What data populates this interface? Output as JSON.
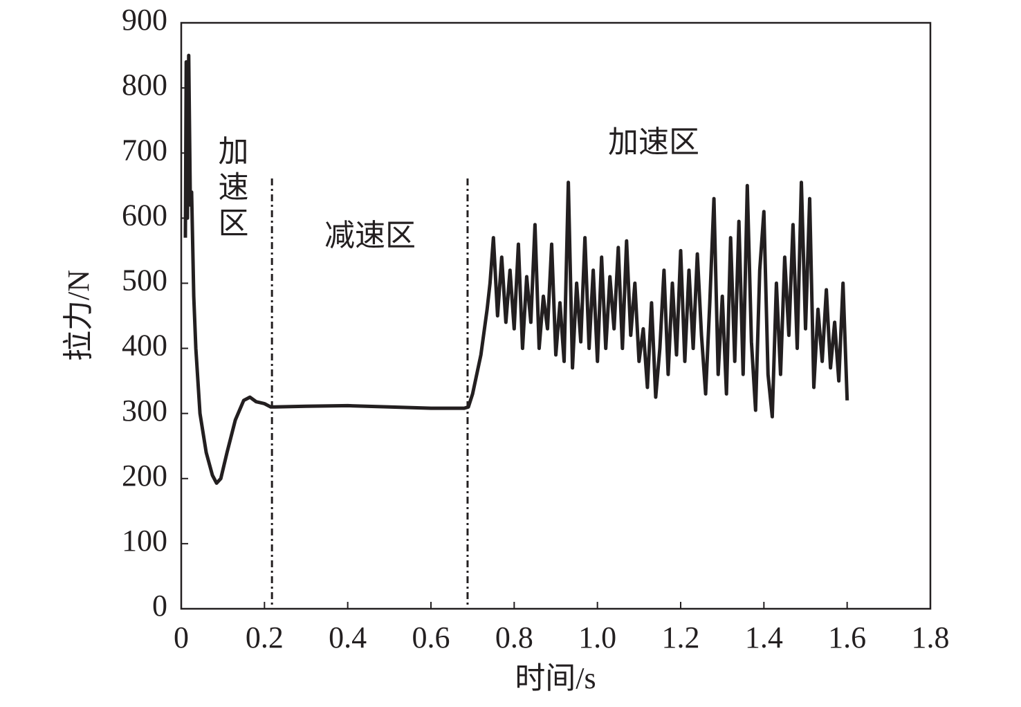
{
  "chart_data": {
    "type": "line",
    "xlabel": "时间/s",
    "ylabel": "拉力/N",
    "annotations": [
      "加速区",
      "减速区",
      "加速区"
    ],
    "vlines": [
      0.218,
      0.688
    ],
    "x": [
      0.01,
      0.012,
      0.015,
      0.018,
      0.022,
      0.025,
      0.03,
      0.035,
      0.045,
      0.06,
      0.075,
      0.085,
      0.095,
      0.11,
      0.13,
      0.15,
      0.165,
      0.18,
      0.2,
      0.215,
      0.225,
      0.3,
      0.4,
      0.5,
      0.6,
      0.68,
      0.69,
      0.7,
      0.72,
      0.735,
      0.742,
      0.75,
      0.76,
      0.77,
      0.78,
      0.79,
      0.8,
      0.81,
      0.82,
      0.83,
      0.84,
      0.85,
      0.86,
      0.87,
      0.88,
      0.89,
      0.9,
      0.91,
      0.92,
      0.93,
      0.94,
      0.95,
      0.96,
      0.97,
      0.98,
      0.99,
      1.0,
      1.01,
      1.02,
      1.03,
      1.04,
      1.05,
      1.06,
      1.07,
      1.08,
      1.09,
      1.1,
      1.11,
      1.12,
      1.13,
      1.14,
      1.15,
      1.16,
      1.17,
      1.18,
      1.19,
      1.2,
      1.21,
      1.22,
      1.23,
      1.24,
      1.25,
      1.26,
      1.27,
      1.28,
      1.29,
      1.3,
      1.31,
      1.32,
      1.33,
      1.34,
      1.35,
      1.36,
      1.37,
      1.38,
      1.39,
      1.4,
      1.41,
      1.42,
      1.43,
      1.44,
      1.45,
      1.46,
      1.47,
      1.48,
      1.49,
      1.5,
      1.51,
      1.52,
      1.53,
      1.54,
      1.55,
      1.56,
      1.57,
      1.58,
      1.59,
      1.6
    ],
    "series": [
      {
        "name": "拉力",
        "color": "#231f20",
        "values": [
          570,
          840,
          600,
          850,
          620,
          640,
          480,
          400,
          300,
          240,
          205,
          193,
          200,
          240,
          290,
          320,
          325,
          318,
          315,
          310,
          310,
          311,
          312,
          310,
          308,
          308,
          310,
          330,
          390,
          460,
          500,
          570,
          450,
          540,
          440,
          520,
          430,
          560,
          400,
          510,
          440,
          590,
          400,
          480,
          430,
          560,
          390,
          470,
          380,
          655,
          370,
          500,
          410,
          570,
          400,
          520,
          380,
          540,
          400,
          510,
          430,
          555,
          400,
          565,
          420,
          500,
          380,
          430,
          340,
          470,
          325,
          400,
          520,
          360,
          500,
          390,
          550,
          380,
          520,
          400,
          545,
          420,
          330,
          470,
          630,
          360,
          480,
          330,
          570,
          380,
          595,
          360,
          650,
          410,
          305,
          520,
          610,
          360,
          295,
          500,
          360,
          540,
          420,
          590,
          400,
          655,
          430,
          630,
          340,
          460,
          380,
          490,
          370,
          440,
          350,
          500,
          320
        ]
      }
    ],
    "xlim": [
      0,
      1.8
    ],
    "ylim": [
      0,
      900
    ],
    "xticks": [
      0,
      0.2,
      0.4,
      0.6,
      0.8,
      {
        "value": 1,
        "label": "1.0"
      },
      1.2,
      1.4,
      1.6,
      1.8
    ],
    "yticks": [
      0,
      100,
      200,
      300,
      400,
      500,
      600,
      700,
      800,
      900
    ]
  }
}
